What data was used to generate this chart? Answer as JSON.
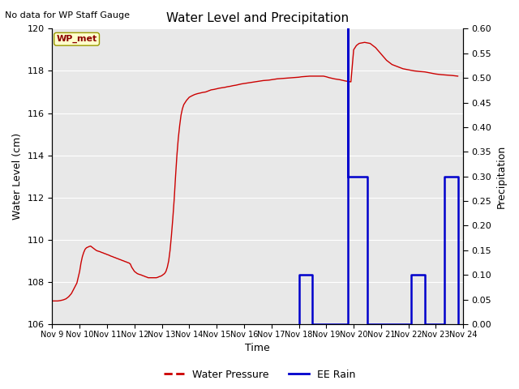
{
  "title": "Water Level and Precipitation",
  "top_left_text": "No data for WP Staff Gauge",
  "legend_box_text": "WP_met",
  "xlabel": "Time",
  "ylabel_left": "Water Level (cm)",
  "ylabel_right": "Precipitation",
  "ylim_left": [
    106,
    120
  ],
  "ylim_right": [
    0.0,
    0.6
  ],
  "yticks_left": [
    106,
    108,
    110,
    112,
    114,
    116,
    118,
    120
  ],
  "yticks_right": [
    0.0,
    0.05,
    0.1,
    0.15,
    0.2,
    0.25,
    0.3,
    0.35,
    0.4,
    0.45,
    0.5,
    0.55,
    0.6
  ],
  "plot_bg_color": "#e8e8e8",
  "grid_color": "#ffffff",
  "red_line_color": "#cc0000",
  "blue_line_color": "#0000cc",
  "legend_label_red": "Water Pressure",
  "legend_label_blue": "EE Rain",
  "water_level_x": [
    9.0,
    9.05,
    9.1,
    9.15,
    9.2,
    9.3,
    9.4,
    9.5,
    9.6,
    9.7,
    9.8,
    9.9,
    10.0,
    10.05,
    10.1,
    10.15,
    10.2,
    10.25,
    10.3,
    10.35,
    10.4,
    10.45,
    10.5,
    10.55,
    10.6,
    10.65,
    10.7,
    10.75,
    10.8,
    10.85,
    10.9,
    10.95,
    11.0,
    11.05,
    11.1,
    11.15,
    11.2,
    11.25,
    11.3,
    11.35,
    11.4,
    11.45,
    11.5,
    11.55,
    11.6,
    11.65,
    11.7,
    11.75,
    11.8,
    11.85,
    11.9,
    11.95,
    12.0,
    12.05,
    12.1,
    12.15,
    12.2,
    12.25,
    12.3,
    12.35,
    12.4,
    12.45,
    12.5,
    12.55,
    12.6,
    12.65,
    12.7,
    12.75,
    12.8,
    12.85,
    12.9,
    12.95,
    13.0,
    13.05,
    13.1,
    13.15,
    13.2,
    13.25,
    13.3,
    13.35,
    13.4,
    13.45,
    13.5,
    13.55,
    13.6,
    13.65,
    13.7,
    13.75,
    13.8,
    13.9,
    14.0,
    14.1,
    14.2,
    14.3,
    14.4,
    14.5,
    14.6,
    14.7,
    14.8,
    14.9,
    15.0,
    15.1,
    15.2,
    15.3,
    15.4,
    15.5,
    15.6,
    15.7,
    15.8,
    15.9,
    16.0,
    16.1,
    16.2,
    16.3,
    16.4,
    16.5,
    16.6,
    16.7,
    16.8,
    16.9,
    17.0,
    17.1,
    17.2,
    17.3,
    17.4,
    17.5,
    17.6,
    17.7,
    17.8,
    17.9,
    18.0,
    18.1,
    18.2,
    18.3,
    18.4,
    18.5,
    18.6,
    18.7,
    18.8,
    18.9,
    19.0,
    19.1,
    19.2,
    19.3,
    19.4,
    19.5,
    19.6,
    19.7,
    19.8,
    19.9,
    20.0,
    20.1,
    20.2,
    20.4,
    20.6,
    20.8,
    21.0,
    21.2,
    21.4,
    21.6,
    21.8,
    22.0,
    22.2,
    22.4,
    22.6,
    22.8,
    23.0,
    23.2,
    23.4,
    23.6,
    23.8
  ],
  "water_level_y": [
    107.1,
    107.1,
    107.1,
    107.1,
    107.1,
    107.12,
    107.15,
    107.2,
    107.3,
    107.45,
    107.7,
    107.95,
    108.5,
    108.9,
    109.2,
    109.4,
    109.55,
    109.62,
    109.65,
    109.68,
    109.7,
    109.65,
    109.6,
    109.55,
    109.5,
    109.47,
    109.45,
    109.43,
    109.4,
    109.38,
    109.35,
    109.33,
    109.3,
    109.28,
    109.25,
    109.22,
    109.2,
    109.17,
    109.15,
    109.12,
    109.1,
    109.07,
    109.05,
    109.02,
    109.0,
    108.97,
    108.95,
    108.92,
    108.9,
    108.85,
    108.7,
    108.6,
    108.5,
    108.45,
    108.4,
    108.37,
    108.35,
    108.33,
    108.3,
    108.28,
    108.25,
    108.23,
    108.2,
    108.2,
    108.2,
    108.2,
    108.2,
    108.2,
    108.2,
    108.22,
    108.25,
    108.27,
    108.3,
    108.35,
    108.4,
    108.5,
    108.7,
    109.0,
    109.5,
    110.2,
    111.0,
    111.9,
    113.0,
    114.0,
    114.8,
    115.4,
    115.9,
    116.2,
    116.4,
    116.6,
    116.75,
    116.82,
    116.88,
    116.92,
    116.95,
    116.98,
    117.0,
    117.05,
    117.1,
    117.12,
    117.15,
    117.18,
    117.2,
    117.22,
    117.25,
    117.27,
    117.3,
    117.32,
    117.35,
    117.38,
    117.4,
    117.42,
    117.44,
    117.46,
    117.48,
    117.5,
    117.52,
    117.54,
    117.55,
    117.56,
    117.58,
    117.6,
    117.62,
    117.63,
    117.64,
    117.65,
    117.66,
    117.67,
    117.68,
    117.69,
    117.7,
    117.72,
    117.73,
    117.74,
    117.75,
    117.75,
    117.75,
    117.75,
    117.75,
    117.75,
    117.72,
    117.68,
    117.65,
    117.62,
    117.6,
    117.58,
    117.55,
    117.52,
    117.5,
    117.48,
    119.0,
    119.2,
    119.3,
    119.35,
    119.3,
    119.1,
    118.8,
    118.5,
    118.3,
    118.2,
    118.1,
    118.05,
    118.0,
    117.97,
    117.95,
    117.9,
    117.85,
    117.82,
    117.8,
    117.78,
    117.75
  ],
  "rain_x": [
    18.0,
    18.0,
    18.5,
    18.5,
    19.5,
    19.5,
    19.8,
    19.8,
    19.8,
    20.5,
    20.5,
    22.1,
    22.1,
    22.6,
    22.6,
    23.3,
    23.3,
    23.8,
    23.8
  ],
  "rain_y": [
    0.0,
    0.1,
    0.1,
    0.0,
    0.0,
    0.0,
    0.0,
    0.6,
    0.3,
    0.3,
    0.0,
    0.0,
    0.1,
    0.1,
    0.0,
    0.0,
    0.3,
    0.3,
    0.0
  ],
  "xtick_positions": [
    9,
    10,
    11,
    12,
    13,
    14,
    15,
    16,
    17,
    18,
    19,
    20,
    21,
    22,
    23,
    24
  ],
  "xtick_labels": [
    "Nov 9",
    "Nov 10",
    "Nov 11",
    "Nov 12",
    "Nov 13",
    "Nov 14",
    "Nov 15",
    "Nov 16",
    "Nov 17",
    "Nov 18",
    "Nov 19",
    "Nov 20",
    "Nov 21",
    "Nov 22",
    "Nov 23",
    "Nov 24"
  ],
  "xlim": [
    9,
    24
  ]
}
